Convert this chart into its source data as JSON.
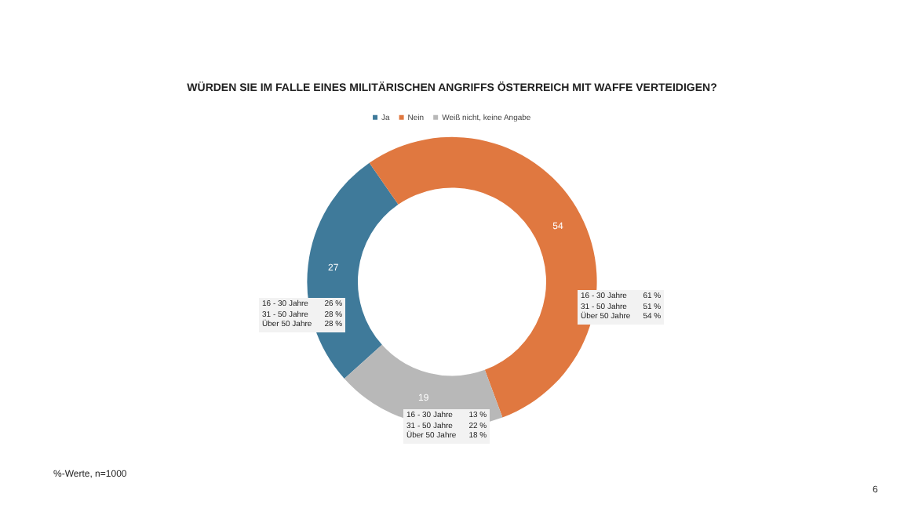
{
  "chart_data": {
    "type": "donut",
    "title": "WÜRDEN SIE IM FALLE EINES MILITÄRISCHEN ANGRIFFS ÖSTERREICH MIT WAFFE VERTEIDIGEN?",
    "categories": [
      "Ja",
      "Nein",
      "Weiß nicht, keine Angabe"
    ],
    "values": [
      27,
      54,
      19
    ],
    "colors": [
      "#3f7a9a",
      "#e07840",
      "#b8b8b8"
    ],
    "data_labels": true,
    "legend": "top",
    "annotations": [
      "16 - 30 Jahre 26 %",
      "31 - 50 Jahre 28 %",
      "Über 50 Jahre 28 %",
      "16 - 30 Jahre 61 %",
      "31 - 50 Jahre 51 %",
      "Über 50 Jahre 54 %",
      "16 - 30 Jahre 13 %",
      "31 - 50 Jahre 22 %",
      "Über 50 Jahre 18 %",
      "%-Werte, n=1000",
      "6"
    ]
  }
}
